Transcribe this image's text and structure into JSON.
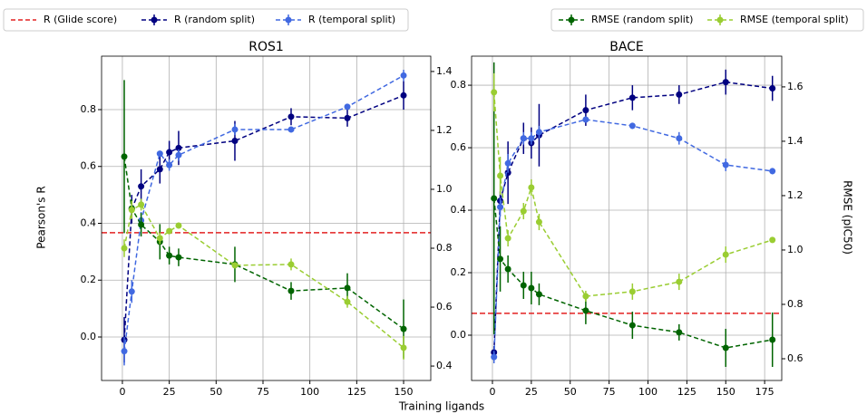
{
  "xlabel": "Training ligands",
  "ylabel": "Pearson's R",
  "y2label": "RMSE (pIC50)",
  "chart_data": [
    {
      "type": "line",
      "title": "ROS1",
      "grid": true,
      "x": [
        1,
        5,
        10,
        20,
        25,
        30,
        60,
        90,
        120,
        150
      ],
      "xlim": [
        -11.1,
        164.5
      ],
      "xticks": [
        0,
        25,
        50,
        75,
        100,
        125,
        150
      ],
      "ylim": [
        -0.153,
        0.988
      ],
      "yticks": [
        {
          "value": 0,
          "label": "0.0"
        },
        0.2,
        0.4,
        0.6,
        0.8
      ],
      "y2lim": [
        0.351,
        1.452
      ],
      "y2ticks": [
        0.4,
        0.6,
        0.8,
        {
          "value": 1,
          "label": "1.0"
        },
        1.2,
        1.4
      ],
      "hline": {
        "name": "R (Glide score)",
        "value": 0.367,
        "color": "#e32222"
      },
      "series": [
        {
          "name": "R (random split)",
          "color": "#000080",
          "values": [
            -0.01,
            0.45,
            0.53,
            0.59,
            0.65,
            0.665,
            0.69,
            0.775,
            0.77,
            0.85
          ],
          "errors": [
            0.08,
            0.05,
            0.06,
            0.05,
            0.04,
            0.06,
            0.07,
            0.03,
            0.03,
            0.05
          ]
        },
        {
          "name": "R (temporal split)",
          "color": "#4169e1",
          "values": [
            -0.05,
            0.16,
            0.41,
            0.645,
            0.605,
            0.64,
            0.73,
            0.73,
            0.81,
            0.92
          ],
          "errors": [
            0.05,
            0.04,
            0.03,
            0.01,
            0.02,
            0.02,
            0.02,
            0.01,
            0.01,
            0.02
          ]
        },
        {
          "name": "RMSE (random split)",
          "color": "#006400",
          "axis": "y2",
          "values": [
            1.111,
            0.935,
            0.88,
            0.822,
            0.775,
            0.769,
            0.745,
            0.655,
            0.665,
            0.526
          ],
          "errors": [
            0.26,
            0.03,
            0.04,
            0.06,
            0.03,
            0.03,
            0.06,
            0.03,
            0.05,
            0.1
          ]
        },
        {
          "name": "RMSE (temporal split)",
          "color": "#9acd32",
          "axis": "y2",
          "values": [
            0.8,
            0.93,
            0.948,
            0.834,
            0.858,
            0.877,
            0.742,
            0.745,
            0.618,
            0.462
          ],
          "errors": [
            0.03,
            0.03,
            0.02,
            0.02,
            0.01,
            0.01,
            0.01,
            0.02,
            0.02,
            0.04
          ]
        }
      ]
    },
    {
      "type": "line",
      "title": "BACE",
      "grid": true,
      "x": [
        1,
        5,
        10,
        20,
        25,
        30,
        60,
        90,
        120,
        150,
        180
      ],
      "xlim": [
        -13.4,
        186
      ],
      "xticks": [
        0,
        25,
        50,
        75,
        100,
        125,
        150,
        175
      ],
      "ylim": [
        -0.145,
        0.893
      ],
      "yticks": [
        {
          "value": 0,
          "label": "0.0"
        },
        0.2,
        0.4,
        0.6,
        0.8
      ],
      "y2lim": [
        0.52,
        1.713
      ],
      "y2ticks": [
        0.6,
        0.8,
        {
          "value": 1,
          "label": "1.0"
        },
        1.2,
        1.4,
        1.6
      ],
      "hline": {
        "name": "R (Glide score)",
        "value": 0.07,
        "color": "#e32222"
      },
      "series": [
        {
          "name": "R (random split)",
          "color": "#000080",
          "values": [
            -0.055,
            0.43,
            0.52,
            0.63,
            0.615,
            0.64,
            0.72,
            0.76,
            0.77,
            0.81,
            0.79
          ],
          "errors": [
            0.02,
            0.03,
            0.1,
            0.05,
            0.05,
            0.1,
            0.05,
            0.04,
            0.03,
            0.04,
            0.04
          ]
        },
        {
          "name": "R (temporal split)",
          "color": "#4169e1",
          "values": [
            -0.07,
            0.41,
            0.55,
            0.63,
            0.63,
            0.65,
            0.69,
            0.67,
            0.63,
            0.545,
            0.525
          ],
          "errors": [
            0.02,
            0.03,
            0.03,
            0.02,
            0.02,
            0.02,
            0.01,
            0.01,
            0.02,
            0.02,
            0.01
          ]
        },
        {
          "name": "RMSE (random split)",
          "color": "#006400",
          "axis": "y2",
          "values": [
            1.19,
            0.967,
            0.93,
            0.87,
            0.86,
            0.837,
            0.777,
            0.723,
            0.697,
            0.64,
            0.67
          ],
          "errors": [
            0.5,
            0.12,
            0.05,
            0.05,
            0.06,
            0.04,
            0.05,
            0.05,
            0.03,
            0.07,
            0.1
          ]
        },
        {
          "name": "RMSE (temporal split)",
          "color": "#9acd32",
          "axis": "y2",
          "values": [
            1.58,
            1.273,
            1.043,
            1.143,
            1.23,
            1.103,
            0.83,
            0.847,
            0.883,
            0.983,
            1.037
          ],
          "errors": [
            0.07,
            0.07,
            0.03,
            0.03,
            0.03,
            0.03,
            0.02,
            0.03,
            0.03,
            0.03,
            0.01
          ]
        }
      ]
    }
  ]
}
